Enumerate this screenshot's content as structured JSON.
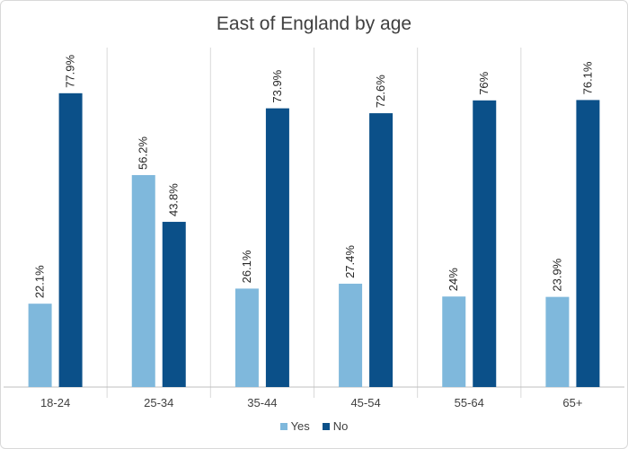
{
  "chart_data": {
    "type": "bar",
    "title": "East of England by age",
    "xlabel": "",
    "ylabel": "",
    "categories": [
      "18-24",
      "25-34",
      "35-44",
      "45-54",
      "55-64",
      "65+"
    ],
    "series": [
      {
        "name": "Yes",
        "color": "#7fb8dc",
        "values": [
          22.1,
          56.2,
          26.1,
          27.4,
          24,
          23.9
        ],
        "labels": [
          "22.1%",
          "56.2%",
          "26.1%",
          "27.4%",
          "24%",
          "23.9%"
        ]
      },
      {
        "name": "No",
        "color": "#0b5089",
        "values": [
          77.9,
          43.8,
          73.9,
          72.6,
          76,
          76.1
        ],
        "labels": [
          "77.9%",
          "43.8%",
          "73.9%",
          "72.6%",
          "76%",
          "76.1%"
        ]
      }
    ],
    "ylim": [
      0,
      90
    ],
    "grid": false,
    "category_separators": true,
    "data_labels_rotated": true,
    "legend_position": "bottom"
  }
}
